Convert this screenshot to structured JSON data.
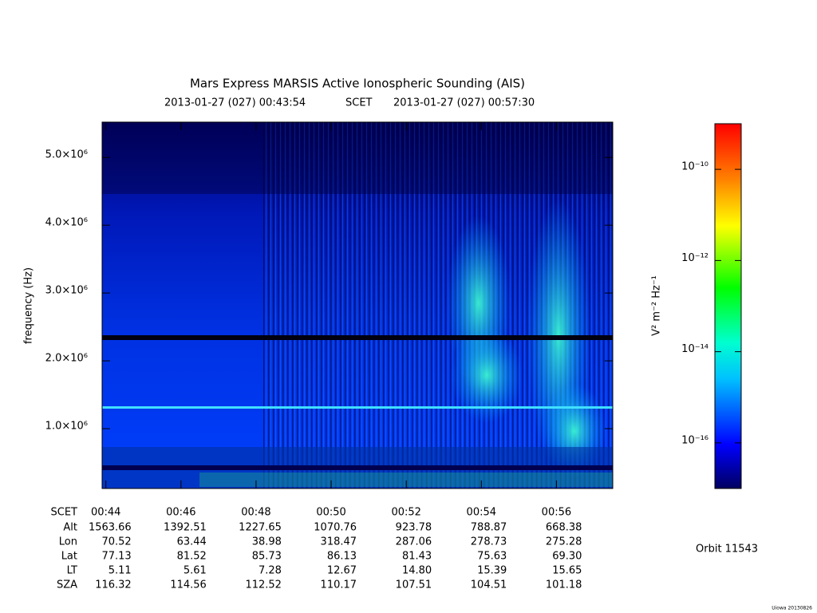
{
  "chart_data": {
    "type": "spectrogram",
    "title": "Mars Express MARSIS Active Ionospheric Sounding (AIS)",
    "start_time": "2013-01-27 (027) 00:43:54",
    "time_label": "SCET",
    "end_time": "2013-01-27 (027) 00:57:30",
    "ylabel": "frequency (Hz)",
    "ylim": [
      118000,
      5520000
    ],
    "yticks": [
      {
        "value": 1000000,
        "label": "1.0×10⁶"
      },
      {
        "value": 2000000,
        "label": "2.0×10⁶"
      },
      {
        "value": 3000000,
        "label": "3.0×10⁶"
      },
      {
        "value": 4000000,
        "label": "4.0×10⁶"
      },
      {
        "value": 5000000,
        "label": "5.0×10⁶"
      }
    ],
    "colorbar": {
      "label": "V² m⁻² Hz⁻¹",
      "log": true,
      "zlim": [
        1e-17,
        1e-09
      ],
      "ticks": [
        {
          "value": 1e-16,
          "label": "10⁻¹⁶"
        },
        {
          "value": 1e-14,
          "label": "10⁻¹⁴"
        },
        {
          "value": 1e-12,
          "label": "10⁻¹²"
        },
        {
          "value": 1e-10,
          "label": "10⁻¹⁰"
        }
      ]
    },
    "ephemeris": {
      "rows": [
        {
          "name": "SCET",
          "values": [
            "00:44",
            "00:46",
            "00:48",
            "00:50",
            "00:52",
            "00:54",
            "00:56"
          ]
        },
        {
          "name": "Alt",
          "values": [
            "1563.66",
            "1392.51",
            "1227.65",
            "1070.76",
            "923.78",
            "788.87",
            "668.38"
          ]
        },
        {
          "name": "Lon",
          "values": [
            "70.52",
            "63.44",
            "38.98",
            "318.47",
            "287.06",
            "278.73",
            "275.28"
          ]
        },
        {
          "name": "Lat",
          "values": [
            "77.13",
            "81.52",
            "85.73",
            "86.13",
            "81.43",
            "75.63",
            "69.30"
          ]
        },
        {
          "name": "LT",
          "values": [
            "5.11",
            "5.61",
            "7.28",
            "12.67",
            "14.80",
            "15.39",
            "15.65"
          ]
        },
        {
          "name": "SZA",
          "values": [
            "116.32",
            "114.56",
            "112.52",
            "110.17",
            "107.51",
            "104.51",
            "101.18"
          ]
        }
      ]
    },
    "orbit": "Orbit 11543",
    "credit": "Uiowa 20130826"
  }
}
